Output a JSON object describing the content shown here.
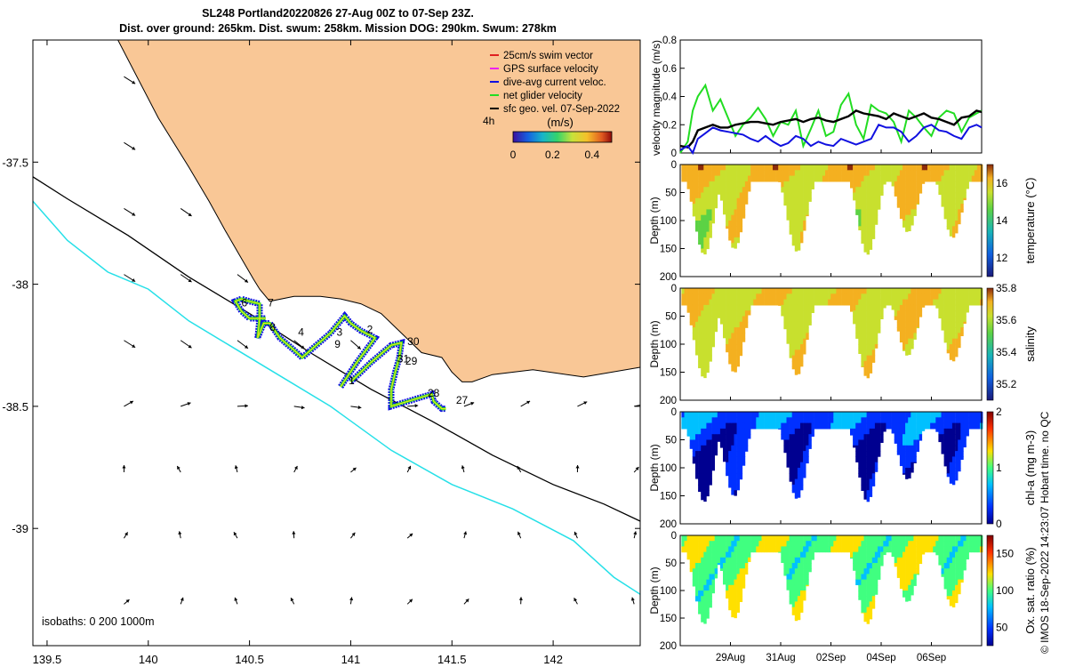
{
  "title": {
    "line1": "SL248 Portland20220826 27-Aug 00Z to 07-Sep 23Z.",
    "line2": "Dist. over ground: 265km. Dist. swum: 258km. Mission DOG: 290km. Swum: 278km"
  },
  "footer": "© IMOS 18-Sep-2022 14:23:07 Hobart time. no QC",
  "colors": {
    "land": "#f9c796",
    "coast": "#000000",
    "isobath_200": "#000000",
    "isobath_1000": "#26e0e8",
    "track_net": "#22dd22",
    "track_fill": "#f0e020",
    "track_dive": "#1010e0",
    "swim": "#e02020",
    "gps": "#ee22ee",
    "speed_green": "#22dd22",
    "speed_blue": "#1010e0",
    "speed_black": "#000000"
  },
  "chart_data": [
    {
      "type": "map",
      "xlabel_ticks": [
        "139.5",
        "140",
        "140.5",
        "141",
        "141.5",
        "142"
      ],
      "x_tick_values": [
        139.5,
        140,
        140.5,
        141,
        141.5,
        142
      ],
      "ylabel_ticks": [
        "-37.5",
        "-38",
        "-38.5",
        "-39"
      ],
      "y_tick_values": [
        -37.5,
        -38,
        -38.5,
        -39
      ],
      "xlim": [
        139.43,
        142.43
      ],
      "ylim": [
        -39.48,
        -37.0
      ],
      "legend": [
        {
          "label": "25cm/s swim vector",
          "color": "#e02020"
        },
        {
          "label": "GPS surface velocity",
          "color": "#ee22ee"
        },
        {
          "label": "dive-avg current veloc.",
          "color": "#1010e0"
        },
        {
          "label": "net glider velocity",
          "color": "#22dd22"
        },
        {
          "label": "sfc geo. vel. 07-Sep-2022",
          "color": "#000000"
        }
      ],
      "legend_position": "top-right",
      "colorbar": {
        "label": "(m/s)",
        "tick_labels": [
          "0",
          "0.2",
          "0.4"
        ],
        "range": [
          0,
          0.5
        ],
        "time_label": "4h"
      },
      "isobaths_text": "isobaths: 0   200  1000m",
      "coastline": [
        [
          142.43,
          -38.34
        ],
        [
          142.15,
          -38.38
        ],
        [
          141.9,
          -38.35
        ],
        [
          141.7,
          -38.37
        ],
        [
          141.6,
          -38.4
        ],
        [
          141.55,
          -38.4
        ],
        [
          141.5,
          -38.36
        ],
        [
          141.45,
          -38.3
        ],
        [
          141.35,
          -38.28
        ],
        [
          141.25,
          -38.2
        ],
        [
          141.15,
          -38.12
        ],
        [
          141.05,
          -38.08
        ],
        [
          140.95,
          -38.06
        ],
        [
          140.85,
          -38.05
        ],
        [
          140.72,
          -38.05
        ],
        [
          140.6,
          -38.07
        ],
        [
          140.55,
          -38.02
        ],
        [
          140.52,
          -37.98
        ],
        [
          140.45,
          -37.88
        ],
        [
          140.38,
          -37.78
        ],
        [
          140.3,
          -37.66
        ],
        [
          140.2,
          -37.52
        ],
        [
          140.05,
          -37.32
        ],
        [
          139.85,
          -37.0
        ]
      ],
      "isobath_200m": [
        [
          139.43,
          -37.56
        ],
        [
          139.6,
          -37.65
        ],
        [
          139.9,
          -37.8
        ],
        [
          140.2,
          -37.97
        ],
        [
          140.5,
          -38.12
        ],
        [
          140.8,
          -38.28
        ],
        [
          141.1,
          -38.43
        ],
        [
          141.4,
          -38.56
        ],
        [
          141.7,
          -38.7
        ],
        [
          142.0,
          -38.82
        ],
        [
          142.25,
          -38.9
        ],
        [
          142.43,
          -38.97
        ]
      ],
      "isobath_1000m": [
        [
          139.43,
          -37.66
        ],
        [
          139.6,
          -37.82
        ],
        [
          139.8,
          -37.95
        ],
        [
          140.0,
          -38.02
        ],
        [
          140.2,
          -38.15
        ],
        [
          140.4,
          -38.25
        ],
        [
          140.6,
          -38.35
        ],
        [
          140.9,
          -38.5
        ],
        [
          141.2,
          -38.68
        ],
        [
          141.5,
          -38.82
        ],
        [
          141.8,
          -38.92
        ],
        [
          142.1,
          -39.05
        ],
        [
          142.3,
          -39.2
        ],
        [
          142.43,
          -39.27
        ]
      ],
      "glider_track": [
        [
          140.95,
          -38.42
        ],
        [
          141.03,
          -38.32
        ],
        [
          141.12,
          -38.22
        ],
        [
          141.05,
          -38.19
        ],
        [
          141.0,
          -38.16
        ],
        [
          140.97,
          -38.13
        ],
        [
          140.9,
          -38.2
        ],
        [
          140.83,
          -38.25
        ],
        [
          140.76,
          -38.3
        ],
        [
          140.72,
          -38.27
        ],
        [
          140.65,
          -38.22
        ],
        [
          140.6,
          -38.16
        ],
        [
          140.57,
          -38.16
        ],
        [
          140.55,
          -38.2
        ],
        [
          140.54,
          -38.22
        ],
        [
          140.55,
          -38.14
        ],
        [
          140.55,
          -38.08
        ],
        [
          140.5,
          -38.07
        ],
        [
          140.46,
          -38.06
        ],
        [
          140.43,
          -38.07
        ],
        [
          140.46,
          -38.11
        ],
        [
          140.5,
          -38.14
        ],
        [
          140.54,
          -38.14
        ],
        [
          140.58,
          -38.14
        ]
      ],
      "glider_track2": [
        [
          141.0,
          -38.4
        ],
        [
          141.1,
          -38.32
        ],
        [
          141.2,
          -38.25
        ],
        [
          141.25,
          -38.24
        ],
        [
          141.24,
          -38.3
        ],
        [
          141.22,
          -38.36
        ],
        [
          141.2,
          -38.43
        ],
        [
          141.2,
          -38.5
        ],
        [
          141.28,
          -38.48
        ],
        [
          141.36,
          -38.46
        ],
        [
          141.4,
          -38.45
        ],
        [
          141.41,
          -38.48
        ],
        [
          141.45,
          -38.51
        ],
        [
          141.47,
          -38.51
        ]
      ],
      "segment_labels": [
        "1",
        "2",
        "3",
        "4",
        "6",
        "7",
        "8",
        "9",
        "27",
        "28",
        "29",
        "30",
        "31"
      ],
      "segment_label_positions": [
        [
          140.99,
          -38.41
        ],
        [
          141.08,
          -38.2
        ],
        [
          140.93,
          -38.21
        ],
        [
          140.74,
          -38.21
        ],
        [
          140.46,
          -38.09
        ],
        [
          140.59,
          -38.09
        ],
        [
          140.6,
          -38.19
        ],
        [
          140.92,
          -38.26
        ],
        [
          141.52,
          -38.49
        ],
        [
          141.38,
          -38.46
        ],
        [
          141.27,
          -38.33
        ],
        [
          141.28,
          -38.25
        ],
        [
          141.23,
          -38.32
        ]
      ]
    },
    {
      "type": "line",
      "ylabel": "velocity magnitude (m/s)",
      "ylim": [
        0,
        0.8
      ],
      "y_tick_labels": [
        "0",
        "0.2",
        "0.4",
        "0.6",
        "0.8"
      ],
      "x": [
        0,
        0.3,
        0.5,
        0.7,
        1.0,
        1.3,
        1.6,
        1.9,
        2.2,
        2.5,
        2.8,
        3.1,
        3.4,
        3.7,
        4.0,
        4.3,
        4.6,
        4.9,
        5.2,
        5.5,
        5.8,
        6.1,
        6.4,
        6.7,
        7.0,
        7.3,
        7.6,
        7.9,
        8.2,
        8.5,
        8.8,
        9.1,
        9.4,
        9.7,
        10.0,
        10.3,
        10.6,
        10.9,
        11.2,
        11.5,
        11.8,
        12.0
      ],
      "series": [
        {
          "name": "net glider velocity",
          "color": "#22dd22",
          "values": [
            0.0,
            0.08,
            0.3,
            0.4,
            0.48,
            0.3,
            0.38,
            0.25,
            0.12,
            0.2,
            0.25,
            0.32,
            0.24,
            0.12,
            0.22,
            0.2,
            0.3,
            0.05,
            0.17,
            0.3,
            0.12,
            0.15,
            0.34,
            0.42,
            0.2,
            0.1,
            0.34,
            0.3,
            0.28,
            0.22,
            0.08,
            0.3,
            0.25,
            0.18,
            0.12,
            0.25,
            0.3,
            0.28,
            0.15,
            0.25,
            0.28,
            0.3
          ]
        },
        {
          "name": "sfc geo. velocity",
          "color": "#000000",
          "values": [
            0.05,
            0.04,
            0.08,
            0.16,
            0.18,
            0.2,
            0.18,
            0.18,
            0.2,
            0.21,
            0.22,
            0.22,
            0.21,
            0.2,
            0.22,
            0.23,
            0.24,
            0.22,
            0.24,
            0.25,
            0.23,
            0.22,
            0.24,
            0.26,
            0.3,
            0.28,
            0.27,
            0.26,
            0.24,
            0.28,
            0.26,
            0.24,
            0.26,
            0.28,
            0.25,
            0.24,
            0.22,
            0.2,
            0.25,
            0.26,
            0.3,
            0.29
          ]
        },
        {
          "name": "dive-avg current",
          "color": "#1010e0",
          "values": [
            0.02,
            0.05,
            0.0,
            0.1,
            0.14,
            0.18,
            0.16,
            0.15,
            0.14,
            0.13,
            0.1,
            0.08,
            0.12,
            0.08,
            0.05,
            0.07,
            0.12,
            0.1,
            0.05,
            0.08,
            0.06,
            0.05,
            0.1,
            0.08,
            0.06,
            0.08,
            0.1,
            0.2,
            0.18,
            0.18,
            0.15,
            0.08,
            0.12,
            0.18,
            0.2,
            0.16,
            0.15,
            0.12,
            0.1,
            0.18,
            0.2,
            0.18
          ]
        }
      ]
    },
    {
      "type": "section",
      "variable": "temperature (°C)",
      "ylabel": "Depth (m)",
      "y_tick_labels": [
        "0",
        "50",
        "100",
        "150",
        "200"
      ],
      "colorbar_ticks": [
        "12",
        "14",
        "16"
      ],
      "colorbar_range": [
        11,
        17
      ],
      "typical_value": 15.8,
      "colormap": "parula"
    },
    {
      "type": "section",
      "variable": "salinity",
      "ylabel": "Depth (m)",
      "y_tick_labels": [
        "0",
        "50",
        "100",
        "150",
        "200"
      ],
      "colorbar_ticks": [
        "35.2",
        "35.4",
        "35.6",
        "35.8"
      ],
      "colorbar_range": [
        35.1,
        35.8
      ],
      "typical_value": 35.6,
      "colormap": "parula"
    },
    {
      "type": "section",
      "variable": "chl-a (mg m-3)",
      "ylabel": "Depth (m)",
      "y_tick_labels": [
        "0",
        "50",
        "100",
        "150",
        "200"
      ],
      "colorbar_ticks": [
        "0",
        "1",
        "2"
      ],
      "colorbar_range": [
        0,
        2
      ],
      "typical_value": 0.45,
      "colormap": "jet"
    },
    {
      "type": "section",
      "variable": "Ox. sat. ratio (%)",
      "ylabel": "Depth (m)",
      "y_tick_labels": [
        "0",
        "50",
        "100",
        "150",
        "200"
      ],
      "colorbar_ticks": [
        "50",
        "100",
        "150"
      ],
      "colorbar_range": [
        25,
        175
      ],
      "typical_value": 105,
      "colormap": "jet"
    }
  ],
  "time_axis": {
    "tick_labels": [
      "29Aug",
      "31Aug",
      "02Sep",
      "04Sep",
      "06Sep"
    ],
    "tick_days": [
      2,
      4,
      6,
      8,
      10
    ],
    "range_days": [
      0,
      12
    ],
    "dive_trough_days": [
      0.9,
      2.1,
      4.6,
      7.4,
      9.0,
      10.8
    ],
    "dive_trough_depths": [
      160,
      150,
      155,
      160,
      120,
      130
    ]
  }
}
